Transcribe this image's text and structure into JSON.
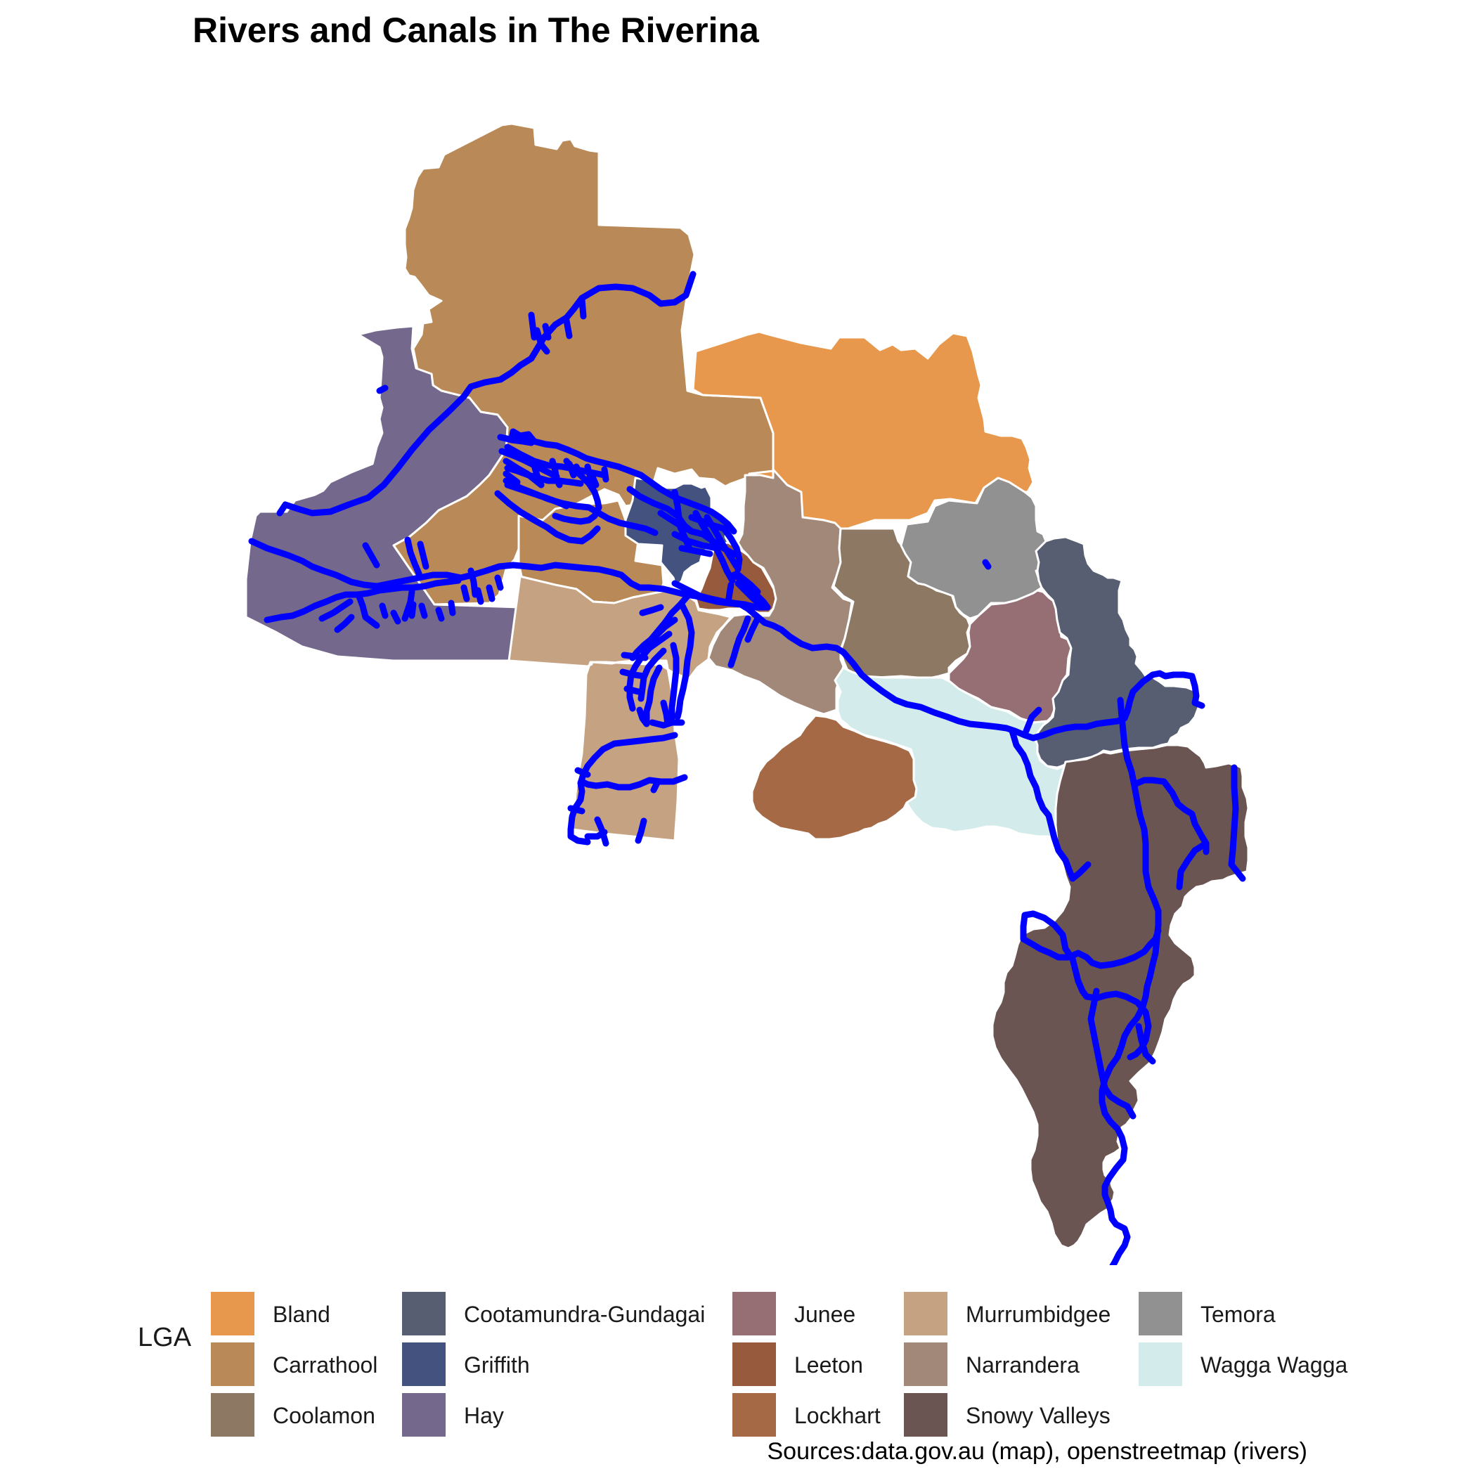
{
  "title": "Rivers and Canals in The Riverina",
  "caption": "Sources:data.gov.au (map), openstreetmap (rivers)",
  "legend": {
    "title": "LGA",
    "items": [
      {
        "label": "Bland",
        "color": "#E8984C"
      },
      {
        "label": "Carrathool",
        "color": "#B98957"
      },
      {
        "label": "Coolamon",
        "color": "#8C7863"
      },
      {
        "label": "Cootamundra-Gundagai",
        "color": "#575E72"
      },
      {
        "label": "Griffith",
        "color": "#43527F"
      },
      {
        "label": "Hay",
        "color": "#74688C"
      },
      {
        "label": "Junee",
        "color": "#966F75"
      },
      {
        "label": "Leeton",
        "color": "#985A3D"
      },
      {
        "label": "Lockhart",
        "color": "#A56A45"
      },
      {
        "label": "Murrumbidgee",
        "color": "#C4A282"
      },
      {
        "label": "Narrandera",
        "color": "#A18878"
      },
      {
        "label": "Snowy Valleys",
        "color": "#6B5552"
      },
      {
        "label": "Temora",
        "color": "#929192"
      },
      {
        "label": "Wagga Wagga",
        "color": "#D3ECEB"
      }
    ]
  },
  "river_color": "#0000FF",
  "border_color": "#FFFFFF"
}
